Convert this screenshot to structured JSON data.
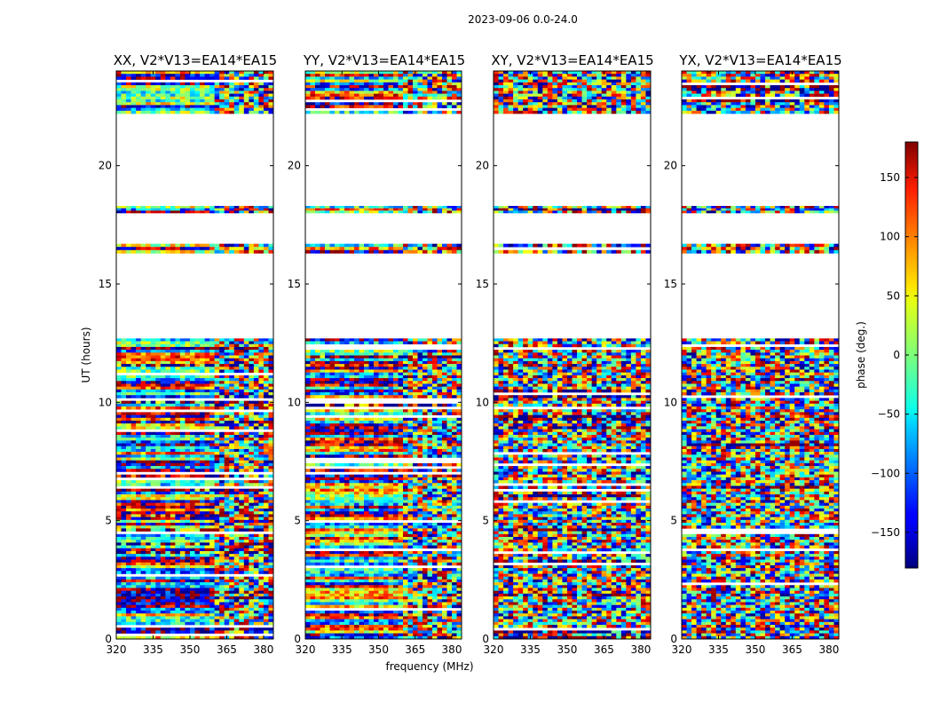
{
  "chart_data": {
    "type": "heatmap",
    "suptitle": "2023-09-06 0.0-24.0",
    "xlabel": "frequency (MHz)",
    "ylabel": "UT (hours)",
    "xlim": [
      320,
      384
    ],
    "ylim": [
      0,
      24
    ],
    "x_ticks": [
      320,
      335,
      350,
      365,
      380
    ],
    "y_ticks": [
      0,
      5,
      10,
      15,
      20
    ],
    "panels": [
      {
        "title": "XX, V2*V13=EA14*EA15",
        "style": "parallel"
      },
      {
        "title": "YY, V2*V13=EA14*EA15",
        "style": "parallel"
      },
      {
        "title": "XY, V2*V13=EA14*EA15",
        "style": "cross"
      },
      {
        "title": "YX, V2*V13=EA14*EA15",
        "style": "cross"
      }
    ],
    "data_time_ranges_hours": [
      [
        0.0,
        12.7
      ],
      [
        16.3,
        16.7
      ],
      [
        18.0,
        18.3
      ],
      [
        22.2,
        24.0
      ]
    ],
    "colorbar": {
      "label": "phase (deg.)",
      "range": [
        -180,
        180
      ],
      "ticks": [
        -150,
        -100,
        -50,
        0,
        50,
        100,
        150
      ],
      "tick_labels": [
        "−150",
        "−100",
        "−50",
        "0",
        "50",
        "100",
        "150"
      ],
      "colormap": "jet"
    }
  }
}
